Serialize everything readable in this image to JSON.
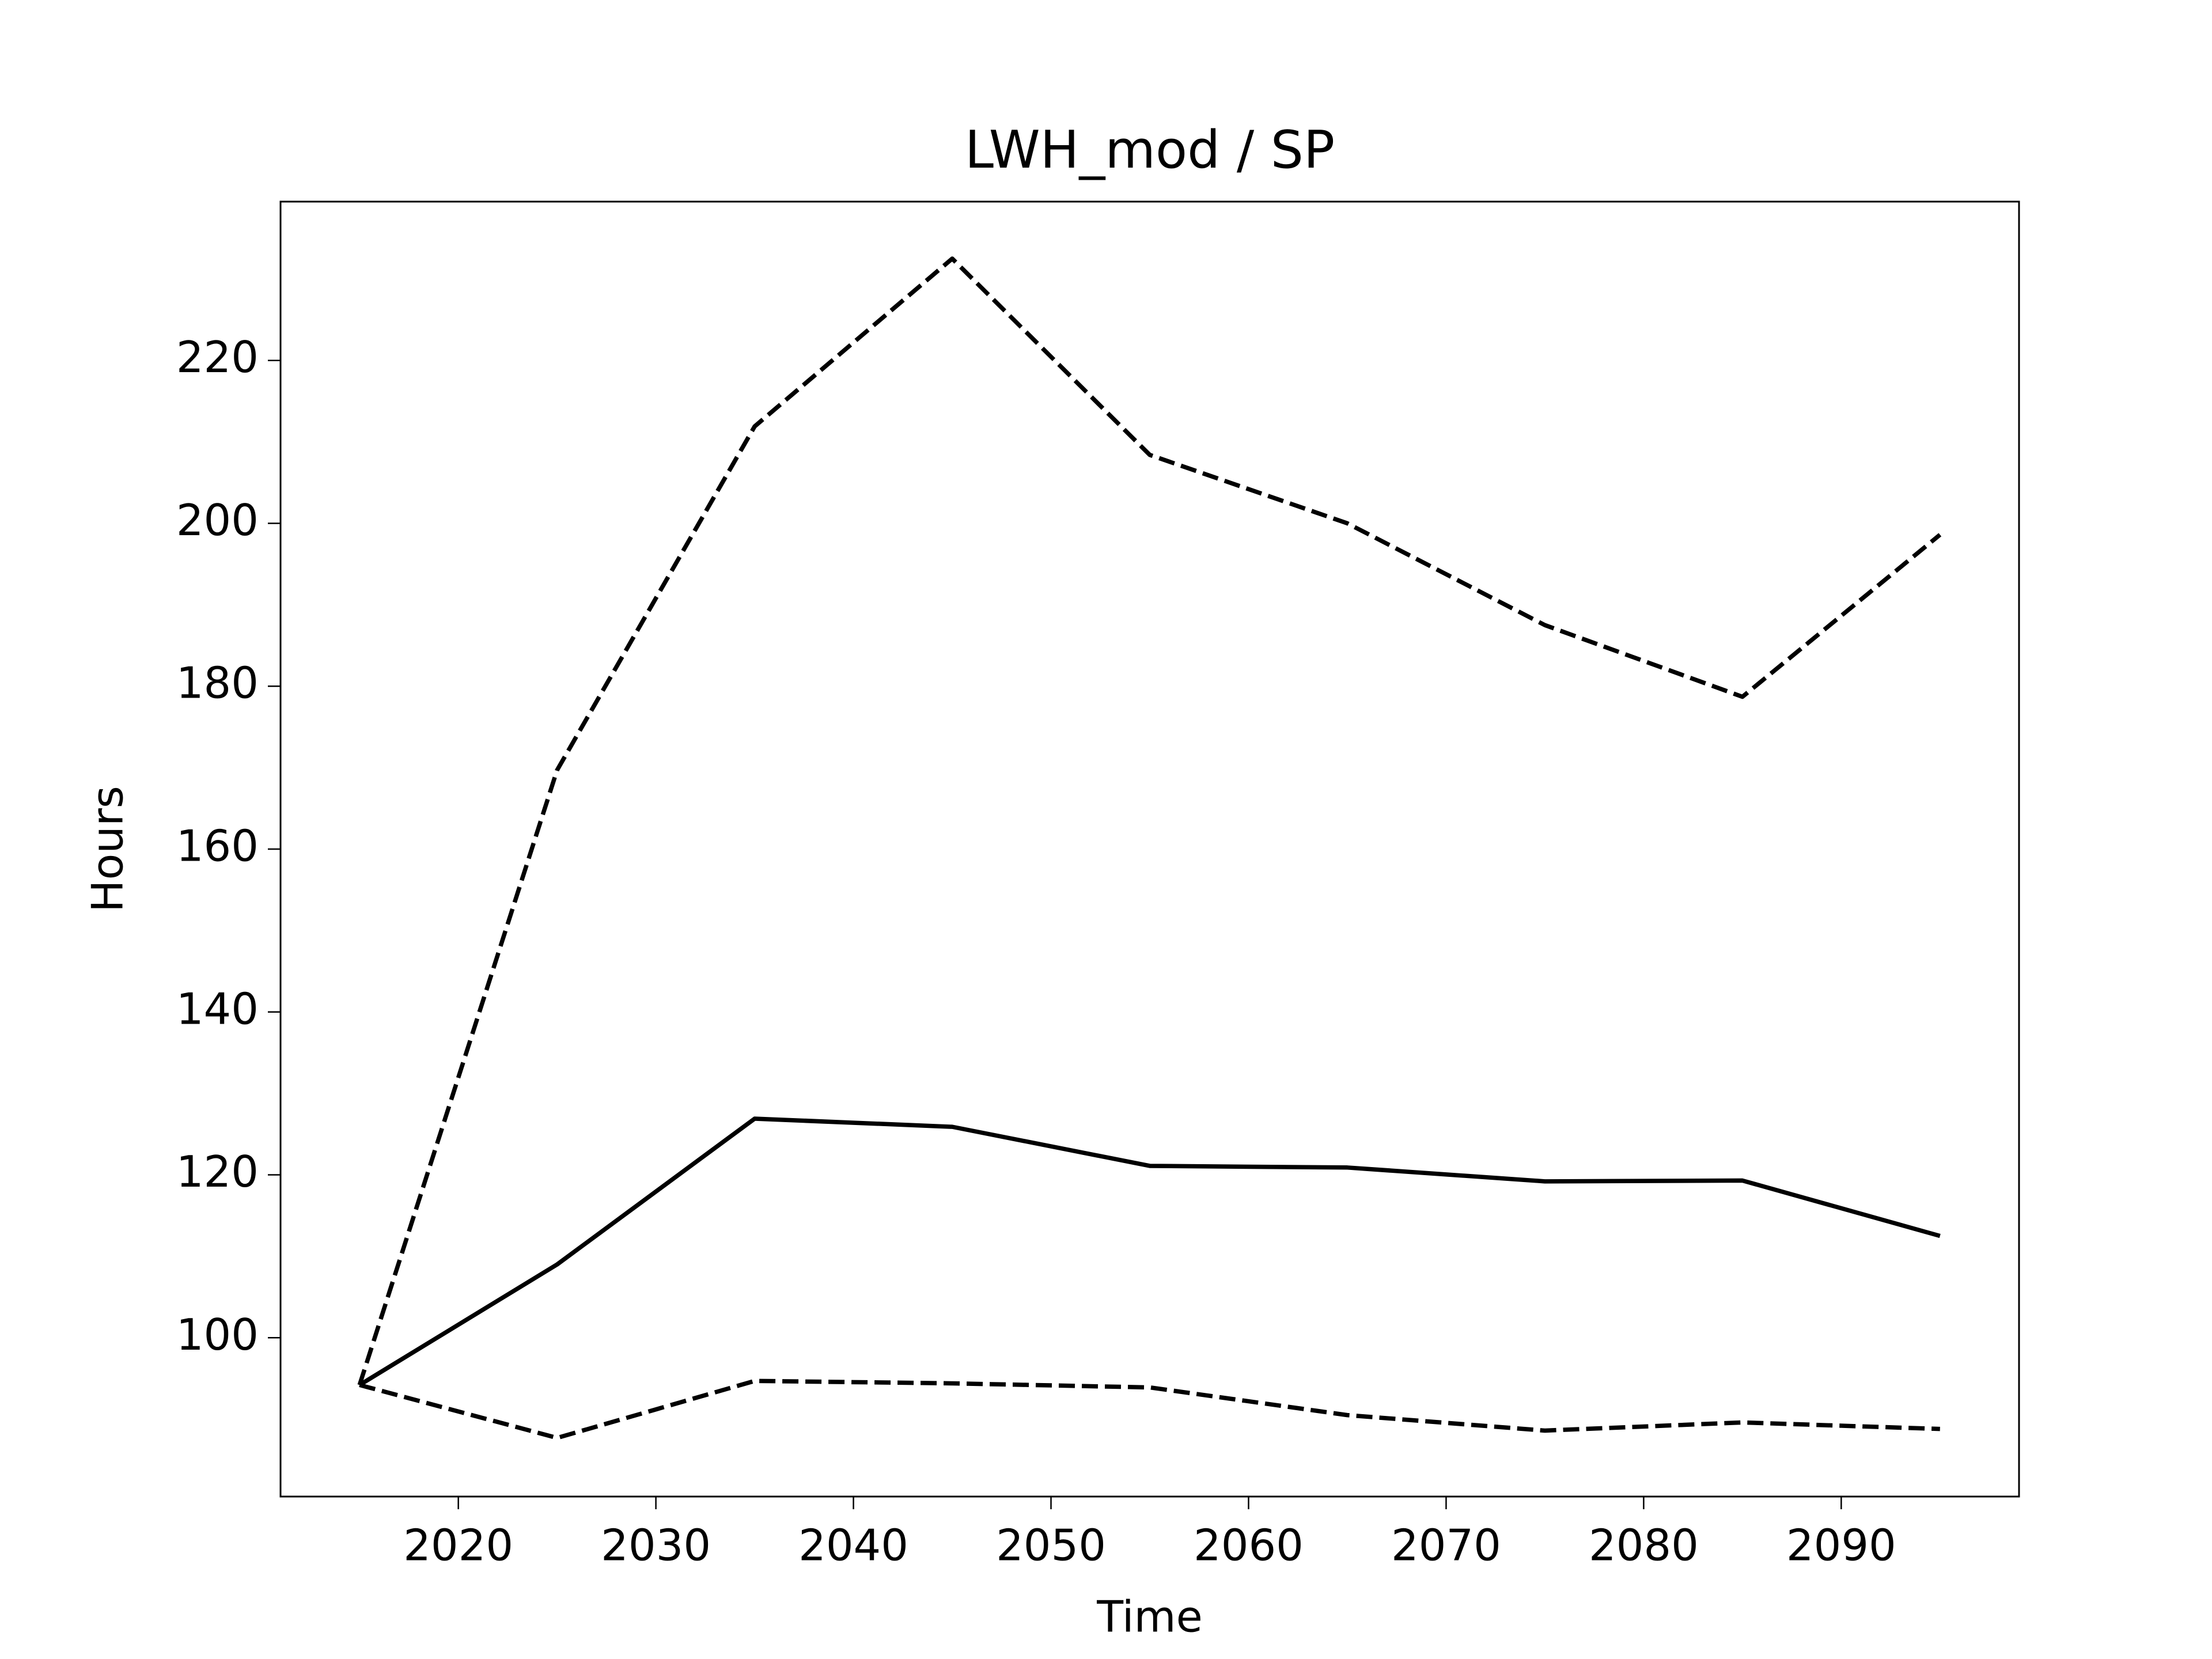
{
  "chart_data": {
    "type": "line",
    "title": "LWH_mod / SP",
    "x_label": "Time",
    "y_label": "Hours",
    "x": [
      2015,
      2025,
      2035,
      2045,
      2055,
      2065,
      2075,
      2085,
      2095
    ],
    "series": [
      {
        "color": "#000000",
        "style": "solid",
        "values": [
          94.2,
          109,
          126.9,
          125.9,
          121.1,
          120.9,
          119.2,
          119.3,
          112.5
        ]
      },
      {
        "color": "#000000",
        "style": "dashed",
        "values": [
          94.2,
          169.7,
          211.9,
          232.5,
          208.4,
          200,
          187.5,
          178.7,
          198.6
        ]
      },
      {
        "color": "#000000",
        "style": "dashed",
        "values": [
          94.2,
          87.7,
          94.7,
          94.4,
          93.9,
          90.5,
          88.6,
          89.6,
          88.8
        ]
      }
    ],
    "xlim": [
      2011,
      2099
    ],
    "ylim": [
      80.5,
      239.5
    ],
    "xticks": [
      2020,
      2030,
      2040,
      2050,
      2060,
      2070,
      2080,
      2090
    ],
    "yticks": [
      100,
      120,
      140,
      160,
      180,
      200,
      220
    ],
    "grid": false
  }
}
